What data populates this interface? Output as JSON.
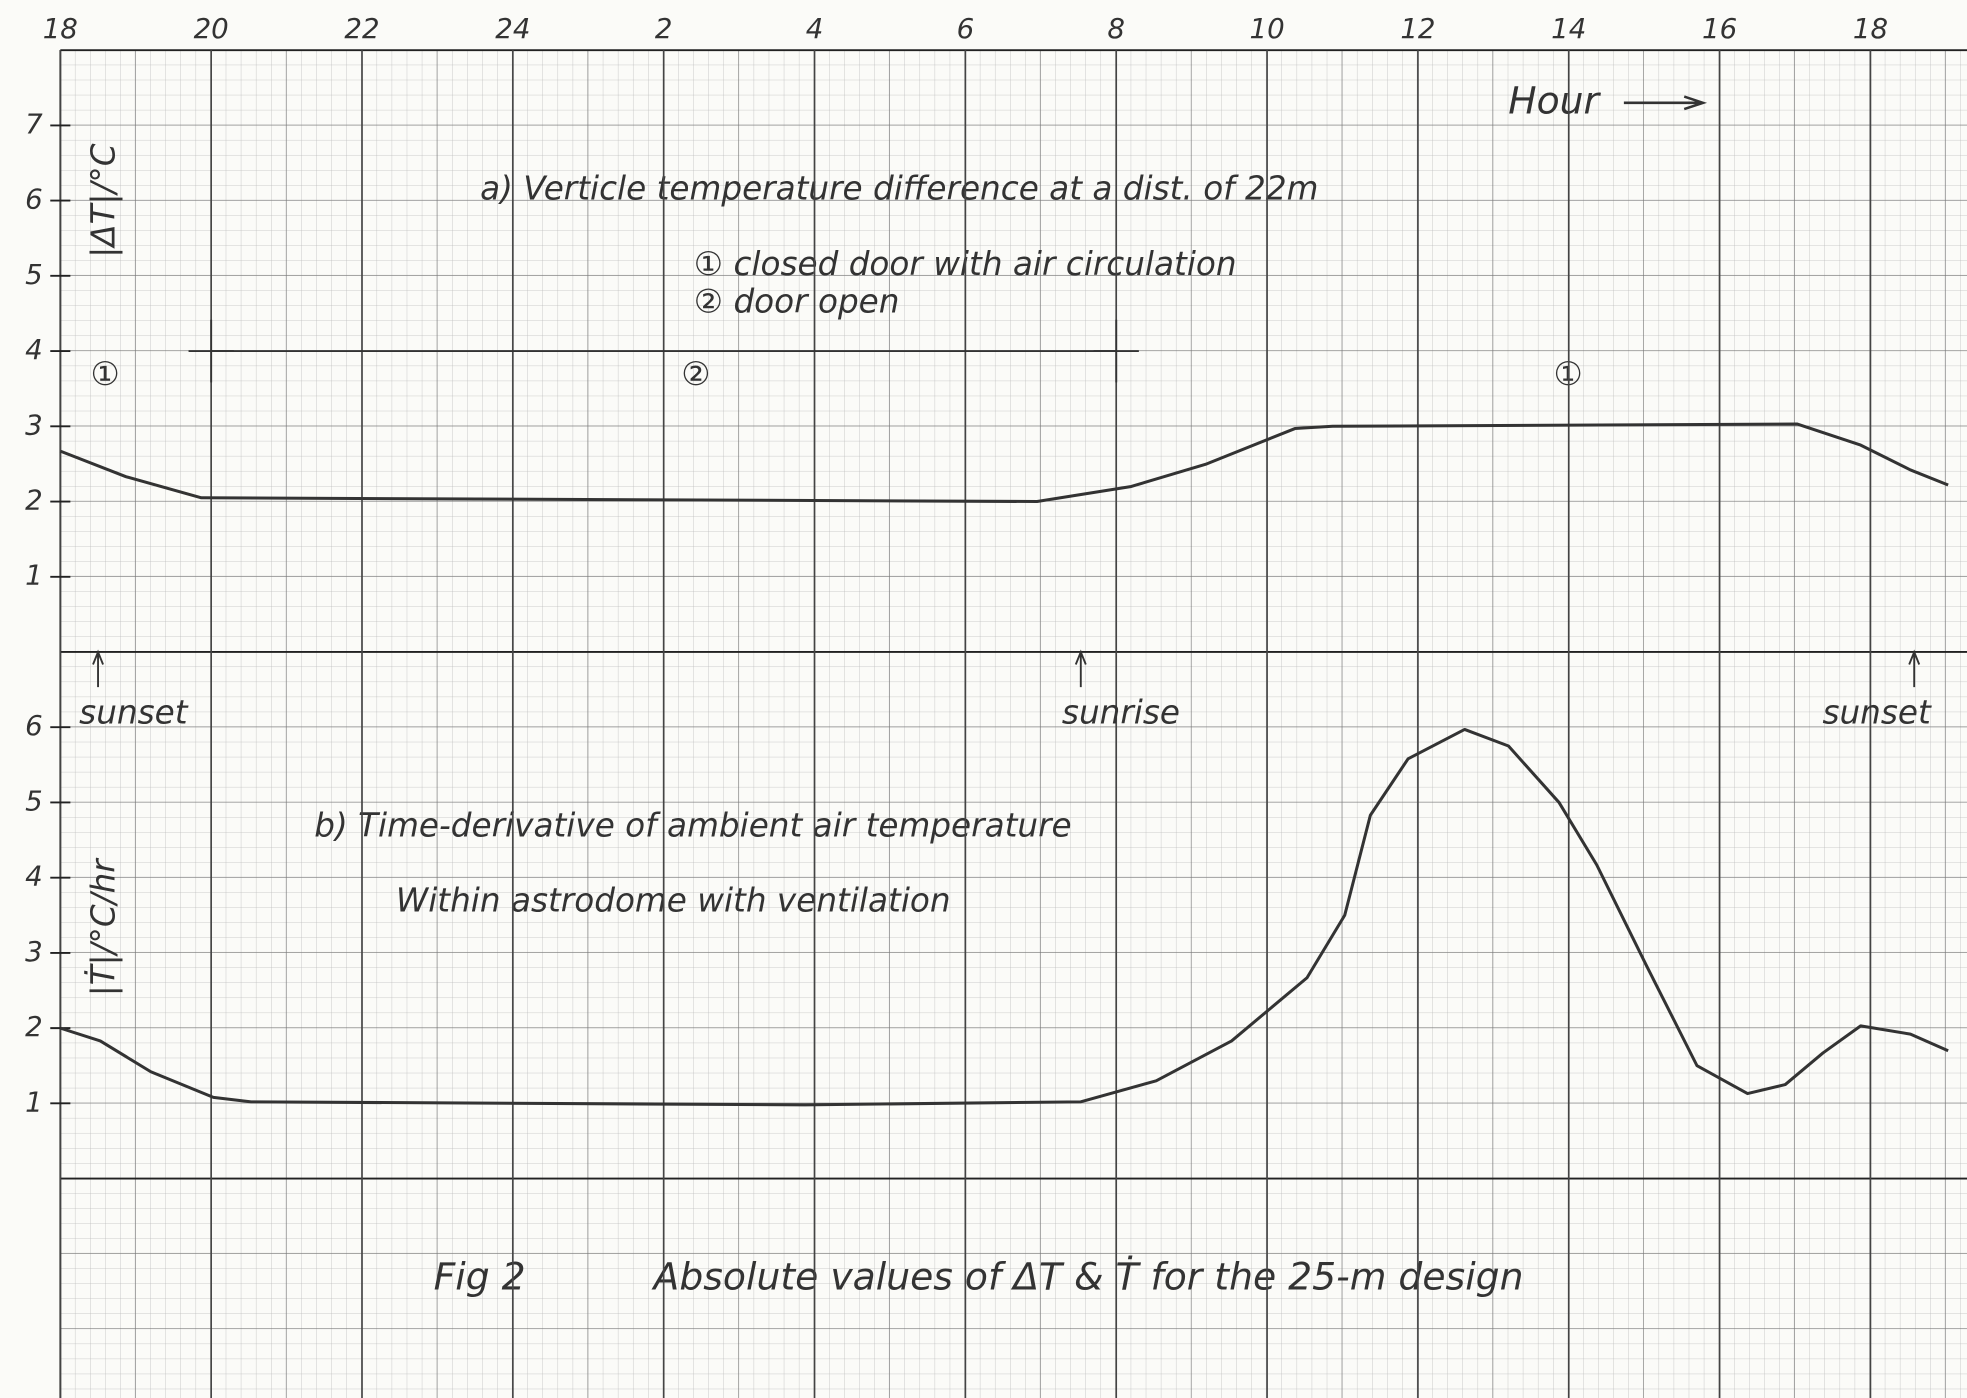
{
  "chart_data": [
    {
      "type": "line",
      "title": "a) Verticle temperature difference at a dist. of 22m",
      "legend": [
        "① closed door with air circulation",
        "② door open"
      ],
      "phase_labels": [
        "①",
        "②",
        "①"
      ],
      "xlabel": "Hour",
      "ylabel": "|ΔT|/°C",
      "color": "#333333",
      "x": [
        18,
        18.87,
        19.87,
        30.95,
        32.2,
        33.2,
        34.37,
        34.87,
        41.03,
        41.87,
        42.53,
        43.03
      ],
      "values": [
        2.67,
        2.33,
        2.05,
        2.0,
        2.2,
        2.5,
        2.97,
        3.0,
        3.03,
        2.75,
        2.42,
        2.22
      ],
      "door_open_marks": {
        "x": [
          20,
          32
        ],
        "y": 4
      },
      "xlim": [
        18,
        43.28
      ],
      "ylim": [
        0,
        8
      ],
      "xticks": [
        18,
        20,
        22,
        24,
        {
          "value": 26,
          "label": "2"
        },
        {
          "value": 28,
          "label": "4"
        },
        {
          "value": 30,
          "label": "6"
        },
        {
          "value": 32,
          "label": "8"
        },
        {
          "value": 34,
          "label": "10"
        },
        {
          "value": 36,
          "label": "12"
        },
        {
          "value": 38,
          "label": "14"
        },
        {
          "value": 40,
          "label": "16"
        },
        {
          "value": 42,
          "label": "18"
        }
      ],
      "yticks": [
        1,
        2,
        3,
        4,
        5,
        6,
        7
      ]
    },
    {
      "type": "line",
      "title": "b) Time-derivative of ambient air temperature",
      "subtitle": "Within astrodome with ventilation",
      "ylabel": "|Ṫ|/°C/hr",
      "color": "#333333",
      "annotations": [
        {
          "x": 18.5,
          "label": "sunset"
        },
        {
          "x": 31.53,
          "label": "sunrise"
        },
        {
          "x": 42.58,
          "label": "sunset"
        }
      ],
      "x": [
        18,
        18.53,
        19.2,
        20.03,
        20.53,
        27.87,
        31.53,
        32.53,
        33.53,
        34.53,
        35.03,
        35.37,
        35.87,
        36.62,
        37.2,
        37.87,
        38.37,
        39.03,
        39.7,
        40.37,
        40.87,
        41.37,
        41.87,
        42.53,
        43.03
      ],
      "values": [
        2.0,
        1.83,
        1.42,
        1.08,
        1.02,
        0.98,
        1.02,
        1.3,
        1.83,
        2.67,
        3.5,
        4.83,
        5.58,
        5.97,
        5.75,
        5.0,
        4.17,
        2.83,
        1.5,
        1.13,
        1.25,
        1.67,
        2.03,
        1.92,
        1.7
      ],
      "xlim": [
        18,
        43.28
      ],
      "ylim": [
        0,
        7
      ],
      "yticks": [
        1,
        2,
        3,
        4,
        5,
        6
      ]
    }
  ],
  "caption": {
    "fig": "Fig 2",
    "text": "Absolute values of ΔT & Ṫ for the 25-m design"
  }
}
